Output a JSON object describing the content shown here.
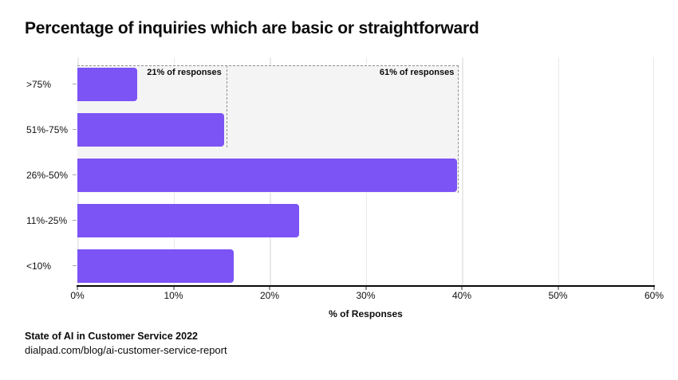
{
  "title": "Percentage of inquiries which are basic or straightforward",
  "chart_data": {
    "type": "bar",
    "orientation": "horizontal",
    "title": "Percentage of inquiries which are basic or straightforward",
    "categories": [
      ">75%",
      "51%-75%",
      "26%-50%",
      "11%-25%",
      "<10%"
    ],
    "values": [
      6.2,
      15.3,
      39.5,
      23.1,
      16.3
    ],
    "xlabel": "% of Responses",
    "ylabel": "",
    "xlim": [
      0,
      60
    ],
    "x_ticks": [
      "0%",
      "10%",
      "20%",
      "30%",
      "40%",
      "50%",
      "60%"
    ],
    "grid": "vertical-gridlines-on",
    "legend": "none",
    "annotations": [
      {
        "text": "21% of responses",
        "x_pct": 15.5,
        "rows_covered": 2
      },
      {
        "text": "61% of responses",
        "x_pct": 39.7,
        "rows_covered": 3
      }
    ]
  },
  "colors": {
    "bar": "#7C53F5",
    "shade_fill": "#F4F4F5",
    "gridline": "#E9E9EB",
    "dashed_line": "#8F8F8F",
    "axis_line": "#0A0A0A",
    "text": "#0B0B0B",
    "background": "#FFFFFF"
  },
  "footer": {
    "source": "State of AI in Customer Service 2022",
    "url": "dialpad.com/blog/ai-customer-service-report"
  }
}
